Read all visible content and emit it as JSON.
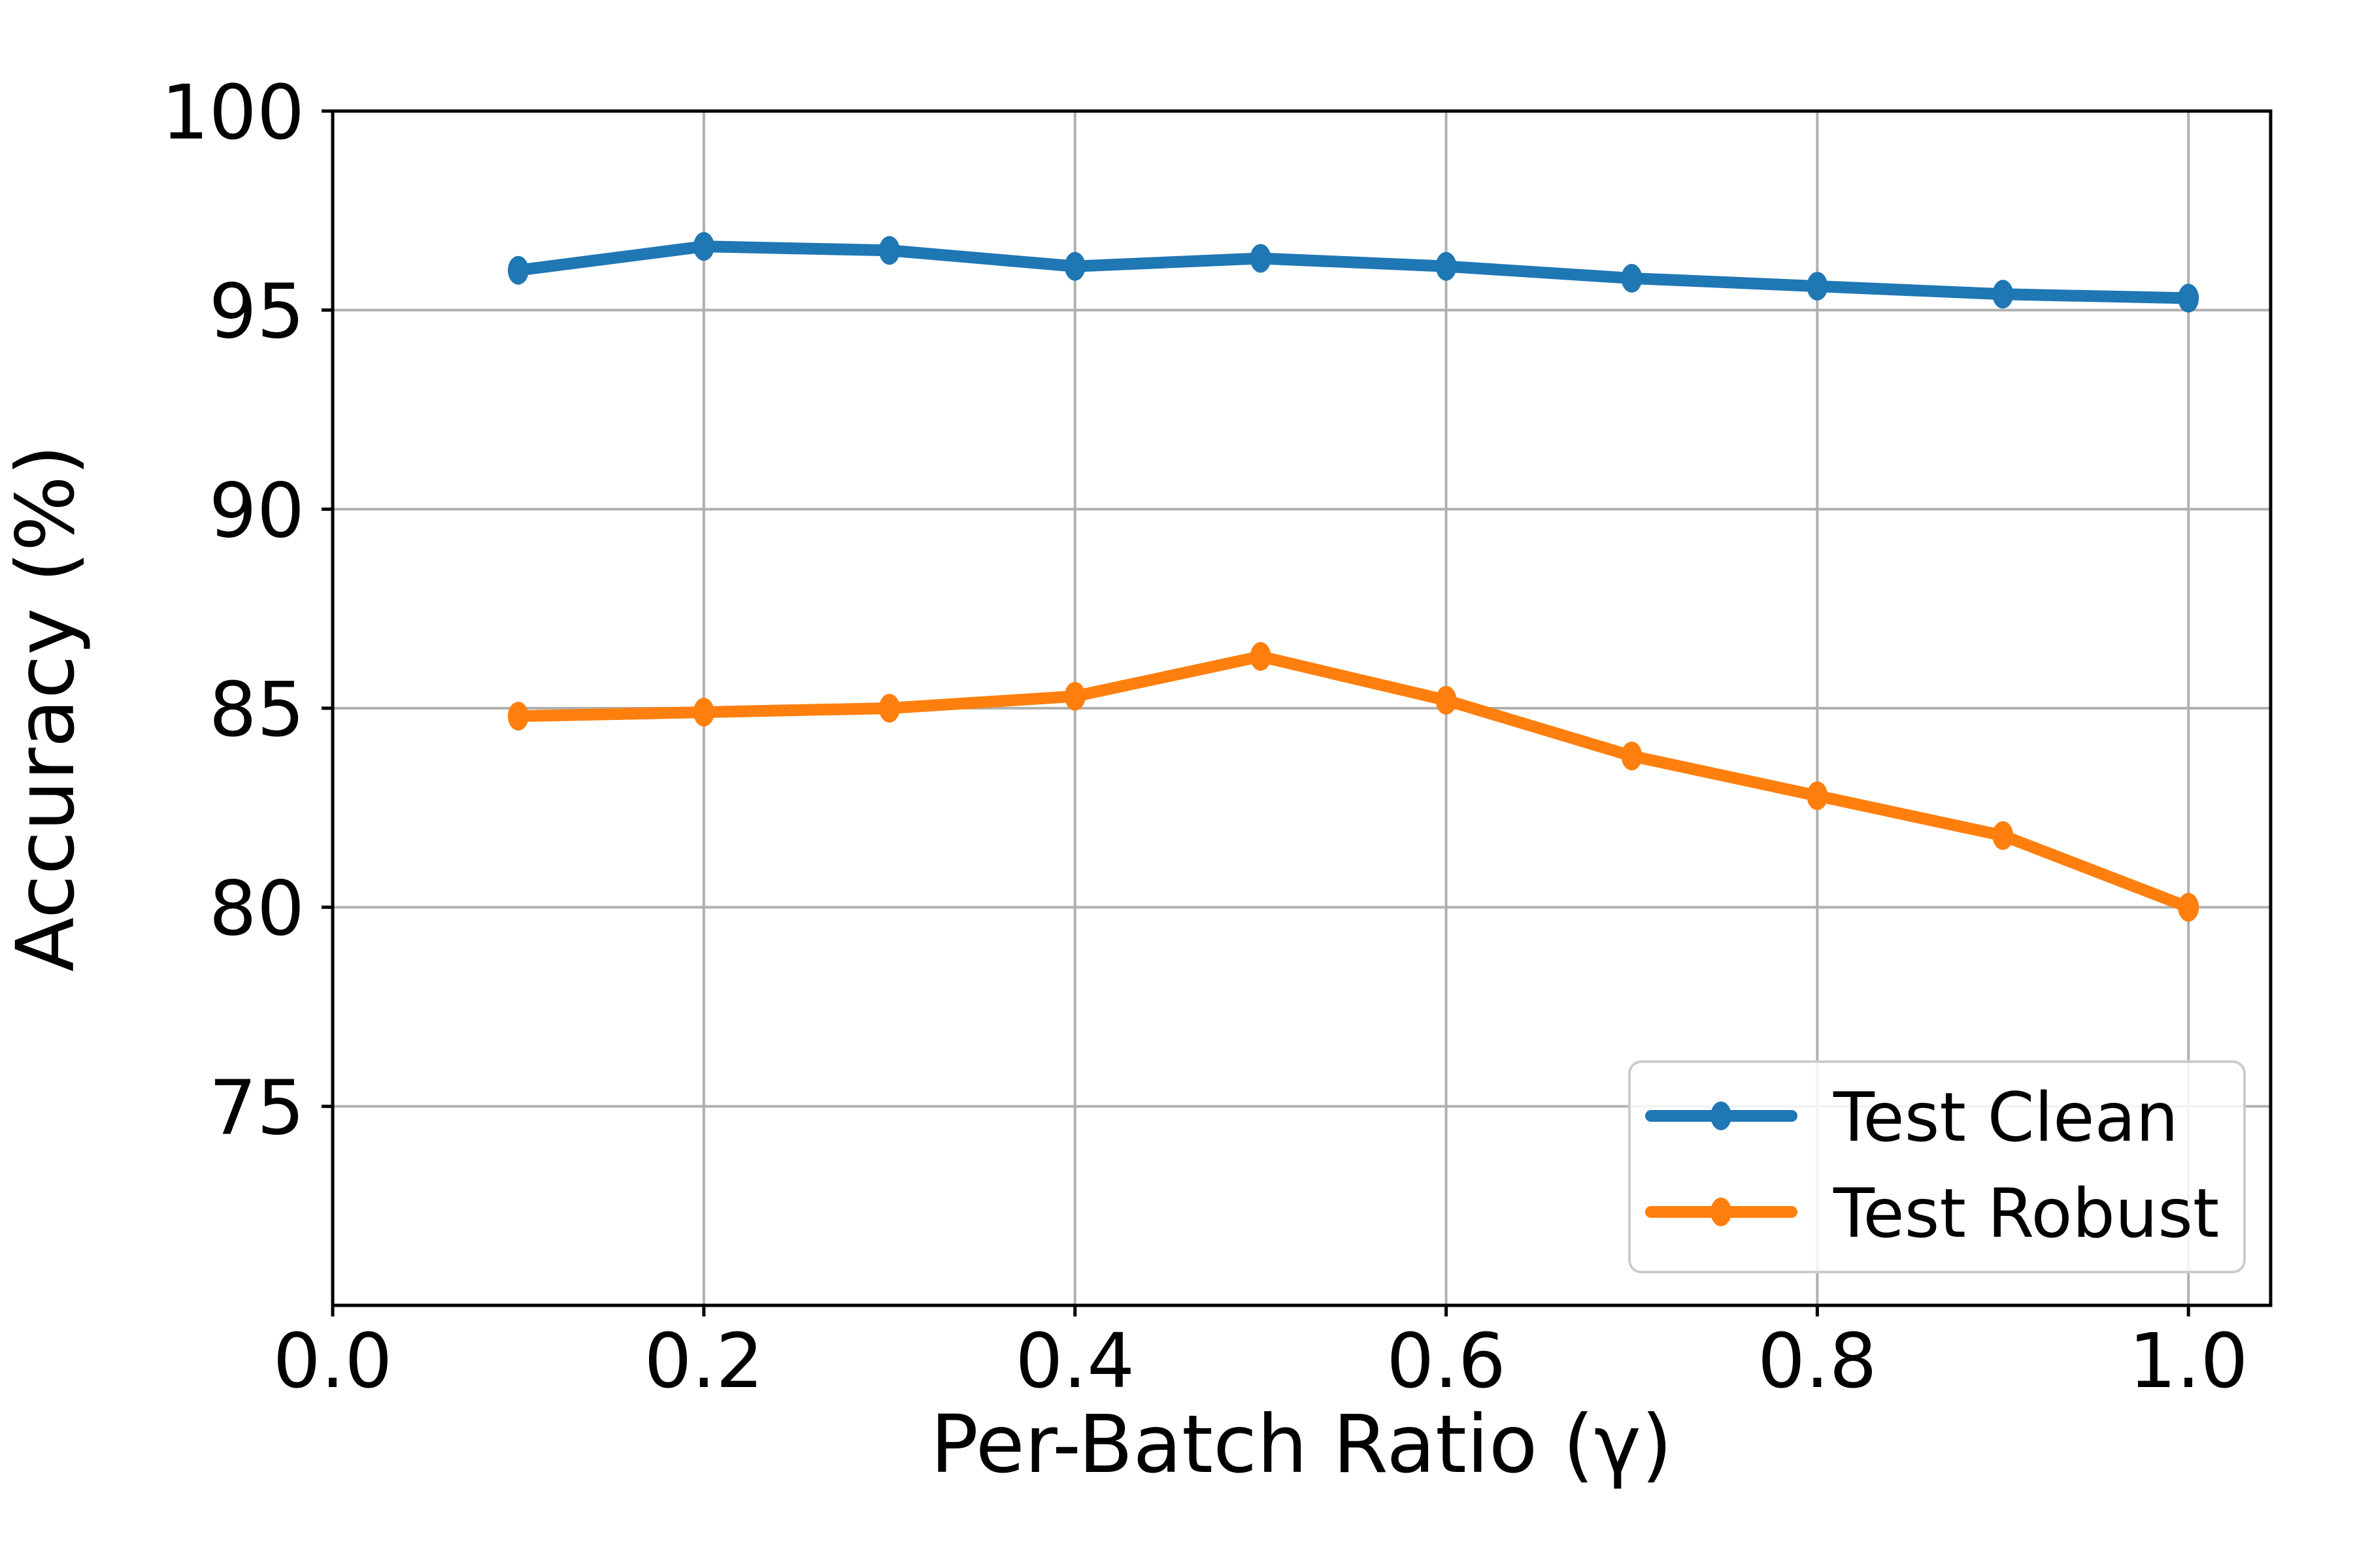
{
  "figure": {
    "background": "#ffffff"
  },
  "chart_data": {
    "type": "line",
    "title": "",
    "xlabel": "Per-Batch Ratio (γ)",
    "ylabel": "Accuracy (%)",
    "x": [
      0.1,
      0.2,
      0.3,
      0.4,
      0.5,
      0.6,
      0.7,
      0.8,
      0.9,
      1.0
    ],
    "series": [
      {
        "name": "Test Clean",
        "color": "#1f77b4",
        "marker": "circle",
        "values": [
          96.0,
          96.6,
          96.5,
          96.1,
          96.3,
          96.1,
          95.8,
          95.6,
          95.4,
          95.3
        ]
      },
      {
        "name": "Test Robust",
        "color": "#ff7f0e",
        "marker": "circle",
        "values": [
          84.8,
          84.9,
          85.0,
          85.3,
          86.3,
          85.2,
          83.8,
          82.8,
          81.8,
          80.0
        ]
      }
    ],
    "xlim": [
      0,
      1.0443
    ],
    "ylim": [
      70,
      100
    ],
    "xticks": {
      "values": [
        0.0,
        0.2,
        0.4,
        0.6,
        0.8,
        1.0
      ],
      "labels": [
        "0.0",
        "0.2",
        "0.4",
        "0.6",
        "0.8",
        "1.0"
      ]
    },
    "yticks": {
      "values": [
        100,
        95,
        90,
        85,
        80,
        75
      ],
      "labels": [
        "100",
        "95",
        "90",
        "85",
        "80",
        "75"
      ]
    },
    "grid": true,
    "grid_color": "#b0b0b0",
    "spine_color": "#000000",
    "text_color": "#000000",
    "legend": {
      "position": "lower right",
      "frame_color": "#cccccc",
      "entries": [
        "Test Clean",
        "Test Robust"
      ]
    }
  }
}
